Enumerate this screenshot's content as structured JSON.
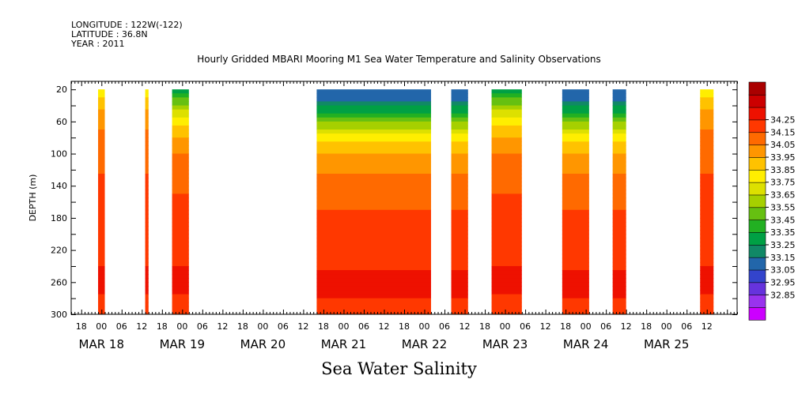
{
  "header": {
    "longitude": "LONGITUDE : 122W(-122)",
    "latitude": "LATITUDE : 36.8N",
    "year": "YEAR : 2011",
    "title": "Hourly Gridded MBARI Mooring M1 Sea Water Temperature and Salinity Observations"
  },
  "chart_data": {
    "type": "heatmap",
    "title": "Hourly Gridded MBARI Mooring M1 Sea Water Temperature and Salinity Observations",
    "xlabel": "Sea Water Salinity",
    "ylabel": "DEPTH (m)",
    "x_hour_ticks": [
      "18",
      "00",
      "06",
      "12",
      "18",
      "00",
      "06",
      "12",
      "18",
      "00",
      "06",
      "12",
      "18",
      "00",
      "06",
      "12",
      "18",
      "00",
      "06",
      "12",
      "18",
      "00",
      "06",
      "12",
      "18",
      "00",
      "06",
      "12",
      "18",
      "00",
      "06",
      "12"
    ],
    "x_date_labels": [
      "MAR 18",
      "MAR 19",
      "MAR 20",
      "MAR 21",
      "MAR 22",
      "MAR 23",
      "MAR 24",
      "MAR 25"
    ],
    "xlim_hours_from_mar18_00": [
      -9,
      189
    ],
    "ylim_depth_m": [
      300,
      10
    ],
    "y_ticks": [
      20,
      60,
      100,
      140,
      180,
      220,
      260,
      300
    ],
    "colorbar_levels": [
      32.85,
      32.95,
      33.05,
      33.15,
      33.25,
      33.35,
      33.45,
      33.55,
      33.65,
      33.75,
      33.85,
      33.95,
      34.05,
      34.15,
      34.25
    ],
    "colorbar_colors": [
      "#cc00ff",
      "#9933ee",
      "#6633dd",
      "#3344cc",
      "#2266aa",
      "#118866",
      "#00a044",
      "#22b022",
      "#66c011",
      "#a6d000",
      "#dde000",
      "#ffee00",
      "#ffc200",
      "#ff9600",
      "#ff6a00",
      "#ff3800",
      "#ee1100",
      "#cc0000",
      "#aa0000"
    ],
    "data_segments": [
      {
        "start_hour": -1,
        "end_hour": 1,
        "profile": "deep"
      },
      {
        "start_hour": 13,
        "end_hour": 14,
        "profile": "deep"
      },
      {
        "start_hour": 21,
        "end_hour": 26,
        "profile": "mid"
      },
      {
        "start_hour": 64,
        "end_hour": 98,
        "profile": "fresh"
      },
      {
        "start_hour": 104,
        "end_hour": 109,
        "profile": "fresh"
      },
      {
        "start_hour": 116,
        "end_hour": 125,
        "profile": "mid"
      },
      {
        "start_hour": 137,
        "end_hour": 145,
        "profile": "fresh"
      },
      {
        "start_hour": 152,
        "end_hour": 156,
        "profile": "fresh"
      },
      {
        "start_hour": 178,
        "end_hour": 182,
        "profile": "deep"
      }
    ],
    "profiles": {
      "deep": {
        "depth_m": [
          20,
          40,
          60,
          80,
          100,
          140,
          180,
          220,
          260,
          300
        ],
        "salinity": [
          33.75,
          33.92,
          34.02,
          34.08,
          34.12,
          34.17,
          34.2,
          34.23,
          34.27,
          34.22
        ]
      },
      "mid": {
        "depth_m": [
          20,
          35,
          50,
          70,
          100,
          140,
          180,
          220,
          260,
          300
        ],
        "salinity": [
          33.3,
          33.5,
          33.7,
          33.9,
          34.05,
          34.14,
          34.19,
          34.23,
          34.27,
          34.22
        ]
      },
      "fresh": {
        "depth_m": [
          20,
          35,
          50,
          65,
          80,
          100,
          130,
          160,
          200,
          240,
          260,
          300
        ],
        "salinity": [
          33.05,
          33.15,
          33.35,
          33.6,
          33.8,
          33.95,
          34.07,
          34.14,
          34.19,
          34.24,
          34.28,
          34.22
        ]
      }
    }
  }
}
